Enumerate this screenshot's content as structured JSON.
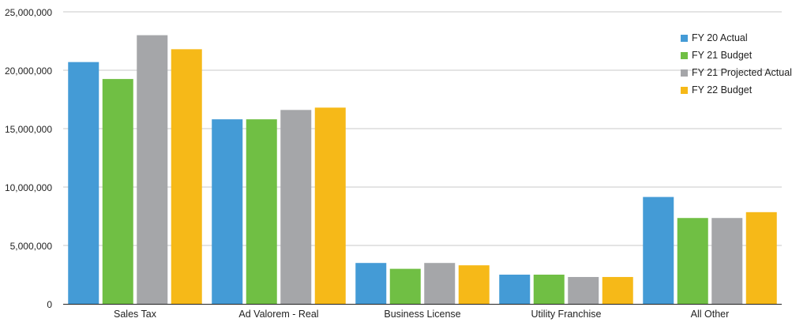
{
  "chart_data": {
    "type": "bar",
    "title": "",
    "xlabel": "",
    "ylabel": "",
    "categories": [
      "Sales Tax",
      "Ad Valorem - Real",
      "Business License",
      "Utility Franchise",
      "All Other"
    ],
    "series": [
      {
        "name": "FY 20 Actual",
        "color": "#449bd6",
        "values": [
          20700000,
          15800000,
          3500000,
          2500000,
          9150000
        ]
      },
      {
        "name": "FY 21 Budget",
        "color": "#70bf44",
        "values": [
          19250000,
          15800000,
          3000000,
          2500000,
          7350000
        ]
      },
      {
        "name": "FY 21 Projected Actual",
        "color": "#a5a6a9",
        "values": [
          23000000,
          16600000,
          3500000,
          2300000,
          7350000
        ]
      },
      {
        "name": "FY 22 Budget",
        "color": "#f6b918",
        "values": [
          21800000,
          16800000,
          3300000,
          2300000,
          7850000
        ]
      }
    ],
    "yticks": [
      "0",
      "5,000,000",
      "10,000,000",
      "15,000,000",
      "20,000,000",
      "25,000,000"
    ],
    "ylim": [
      0,
      25000000
    ],
    "grid": true,
    "legend_position": "top-right"
  }
}
